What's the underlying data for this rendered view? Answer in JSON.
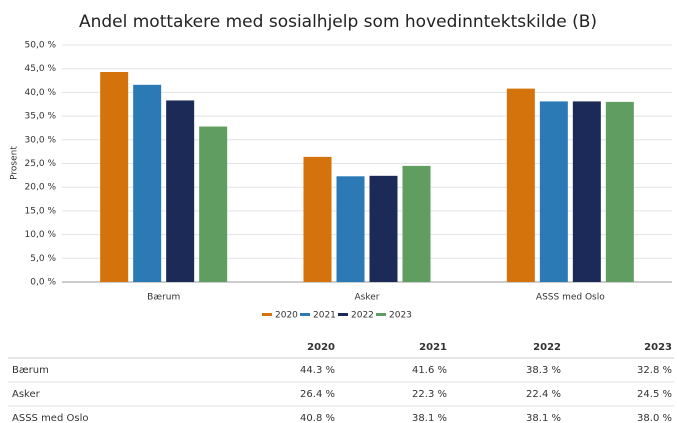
{
  "chart_data": {
    "type": "bar",
    "title": "Andel mottakere med sosialhjelp som hovedinntektskilde (B)",
    "ylabel": "Prosent",
    "categories": [
      "Bærum",
      "Asker",
      "ASSS med Oslo"
    ],
    "series": [
      {
        "name": "2020",
        "color": "#d4720b",
        "values": [
          44.3,
          26.4,
          40.8
        ]
      },
      {
        "name": "2021",
        "color": "#2b79b5",
        "values": [
          41.6,
          22.3,
          38.1
        ]
      },
      {
        "name": "2022",
        "color": "#1b2a57",
        "values": [
          38.3,
          22.4,
          38.1
        ]
      },
      {
        "name": "2023",
        "color": "#5f9e60",
        "values": [
          32.8,
          24.5,
          38.0
        ]
      }
    ],
    "ylim": [
      0,
      50
    ],
    "yticks": [
      {
        "value": 0,
        "label": "0,0 %"
      },
      {
        "value": 5,
        "label": "5,0 %"
      },
      {
        "value": 10,
        "label": "10,0 %"
      },
      {
        "value": 15,
        "label": "15,0 %"
      },
      {
        "value": 20,
        "label": "20,0 %"
      },
      {
        "value": 25,
        "label": "25,0 %"
      },
      {
        "value": 30,
        "label": "30,0 %"
      },
      {
        "value": 35,
        "label": "35,0 %"
      },
      {
        "value": 40,
        "label": "40,0 %"
      },
      {
        "value": 45,
        "label": "45,0 %"
      },
      {
        "value": 50,
        "label": "50,0 %"
      }
    ],
    "grid": true,
    "legend": "bottom"
  },
  "table": {
    "columns": [
      "2020",
      "2021",
      "2022",
      "2023"
    ],
    "rows": [
      {
        "label": "Bærum",
        "cells": [
          "44.3 %",
          "41.6 %",
          "38.3 %",
          "32.8 %"
        ]
      },
      {
        "label": "Asker",
        "cells": [
          "26.4 %",
          "22.3 %",
          "22.4 %",
          "24.5 %"
        ]
      },
      {
        "label": "ASSS med Oslo",
        "cells": [
          "40.8 %",
          "38.1 %",
          "38.1 %",
          "38.0 %"
        ]
      }
    ]
  }
}
